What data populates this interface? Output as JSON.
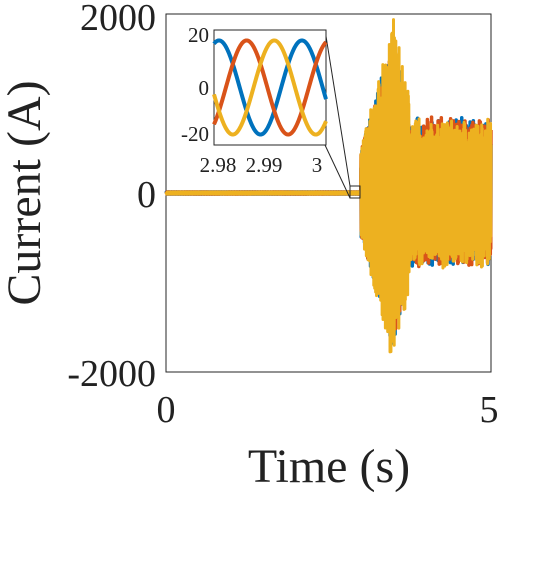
{
  "chart_data": {
    "type": "line",
    "xlabel": "Time (s)",
    "ylabel": "Current (A)",
    "xlim": [
      0,
      5
    ],
    "ylim": [
      -2000,
      2000
    ],
    "x_ticks": [
      "0",
      "5"
    ],
    "y_ticks": [
      "2000",
      "0",
      "-2000"
    ],
    "grid": false,
    "colors": [
      "#0072BD",
      "#D95319",
      "#EDB120"
    ],
    "events": {
      "disturbance_start_s": 3.0,
      "peak_current_A": 1950,
      "min_current_A": -1750
    },
    "series": [
      {
        "phase_offset_deg": 0,
        "color": "#0072BD"
      },
      {
        "phase_offset_deg": -120,
        "color": "#D95319"
      },
      {
        "phase_offset_deg": 120,
        "color": "#EDB120"
      }
    ],
    "inset": {
      "xlim": [
        2.98,
        3.0
      ],
      "ylim": [
        -20,
        20
      ],
      "x_ticks": [
        "2.98",
        "2.99",
        "3"
      ],
      "y_ticks": [
        "20",
        "0",
        "-20"
      ],
      "amplitude_A": 18,
      "frequency_hz": 60
    }
  }
}
